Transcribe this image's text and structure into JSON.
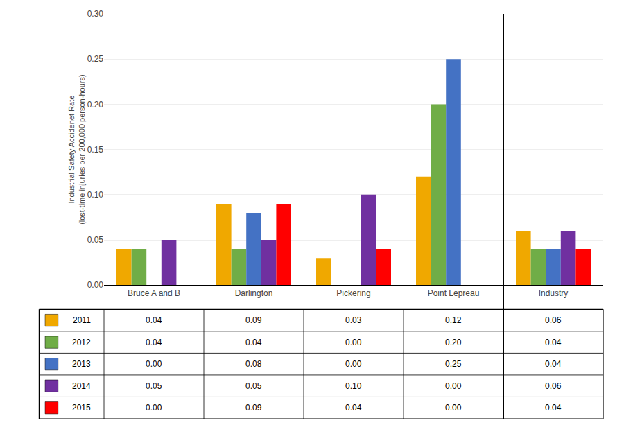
{
  "chart_data": {
    "type": "bar",
    "categories": [
      "Bruce A and B",
      "Darlington",
      "Pickering",
      "Point Lepreau",
      "Industry"
    ],
    "series": [
      {
        "name": "2011",
        "color": "#F0A800",
        "values": [
          0.04,
          0.09,
          0.03,
          0.12,
          0.06
        ],
        "value_labels": [
          "0.04",
          "0.09",
          "0.03",
          "0.12",
          "0.06"
        ]
      },
      {
        "name": "2012",
        "color": "#70AD47",
        "values": [
          0.04,
          0.04,
          0.0,
          0.2,
          0.04
        ],
        "value_labels": [
          "0.04",
          "0.04",
          "0.00",
          "0.20",
          "0.04"
        ]
      },
      {
        "name": "2013",
        "color": "#4472C4",
        "values": [
          0.0,
          0.08,
          0.0,
          0.25,
          0.04
        ],
        "value_labels": [
          "0.00",
          "0.08",
          "0.00",
          "0.25",
          "0.04"
        ]
      },
      {
        "name": "2014",
        "color": "#7030A0",
        "values": [
          0.05,
          0.05,
          0.1,
          0.0,
          0.06
        ],
        "value_labels": [
          "0.05",
          "0.05",
          "0.10",
          "0.00",
          "0.06"
        ]
      },
      {
        "name": "2015",
        "color": "#FF0000",
        "values": [
          0.0,
          0.09,
          0.04,
          0.0,
          0.04
        ],
        "value_labels": [
          "0.00",
          "0.09",
          "0.04",
          "0.00",
          "0.04"
        ]
      }
    ],
    "ylabel": "Industrial Safety Accidenet Rate\n(lost-time injuries per 200,000 person-hours)",
    "ylim": [
      0.0,
      0.3
    ],
    "yticks": [
      {
        "value": 0.0,
        "label": "0.00"
      },
      0.05,
      {
        "value": 0.1,
        "label": "0.10"
      },
      0.15,
      {
        "value": 0.2,
        "label": "0.20"
      },
      0.25,
      {
        "value": 0.3,
        "label": "0.30"
      }
    ],
    "grid": true
  }
}
